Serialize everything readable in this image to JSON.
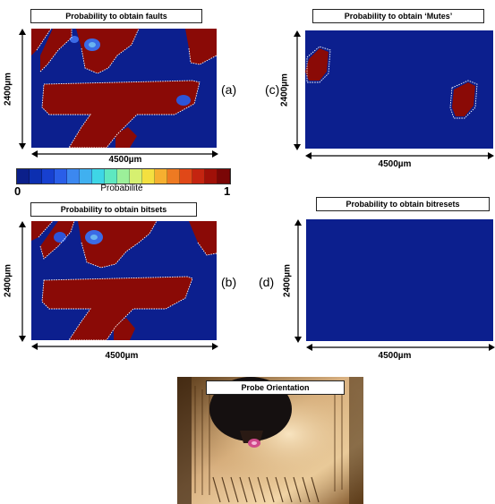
{
  "panels": {
    "a": {
      "title": "Probability to obtain faults",
      "letter": "(a)"
    },
    "b": {
      "title": "Probability to obtain bitsets",
      "letter": "(b)"
    },
    "c": {
      "title": "Probability to obtain ‘Mutes’",
      "letter": "(c)"
    },
    "d": {
      "title": "Probability to obtain bitresets",
      "letter": "(d)"
    }
  },
  "dimensions": {
    "width_label": "4500µm",
    "height_label": "2400µm"
  },
  "colorbar": {
    "min_label": "0",
    "max_label": "1",
    "caption": "Probabilité",
    "colors": [
      "#0b1f8a",
      "#0c2fb0",
      "#1740d0",
      "#2a5ee8",
      "#3c88f0",
      "#40b0f0",
      "#3ed6e6",
      "#5ee8c0",
      "#9cf09a",
      "#d6f070",
      "#f4e040",
      "#f6b030",
      "#ee7a22",
      "#e04818",
      "#c42410",
      "#a01008",
      "#7a0606"
    ]
  },
  "photo": {
    "title": "Probe Orientation"
  },
  "colors": {
    "map_blue": "#0c1f8e",
    "map_red": "#8a0a06",
    "hot_blue": "#3b6be6"
  }
}
